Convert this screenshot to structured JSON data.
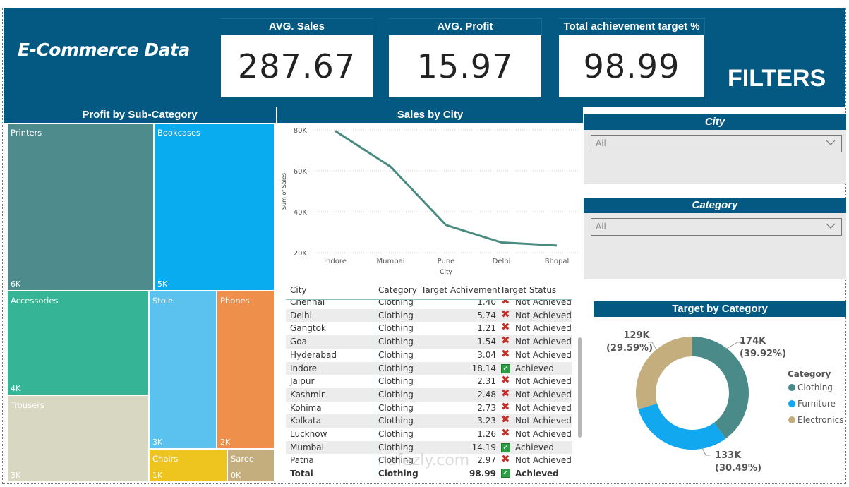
{
  "app": {
    "title": "E-Commerce Data"
  },
  "kpis": [
    {
      "label": "AVG. Sales",
      "value": "287.67"
    },
    {
      "label": "AVG. Profit",
      "value": "15.97"
    },
    {
      "label": "Total achievement target %",
      "value": "98.99"
    }
  ],
  "filters": {
    "title": "FILTERS",
    "city": {
      "title": "City",
      "selected": "All"
    },
    "category": {
      "title": "Category",
      "selected": "All"
    }
  },
  "colors": {
    "header": "#045983",
    "clothing": "#4a8b8a",
    "furniture": "#12a8ef",
    "electronics": "#c4ae7d",
    "line": "#4a8b80"
  },
  "treemap": {
    "title": "Profit by Sub-Category",
    "tiles": [
      {
        "name": "Printers",
        "value": "6K",
        "color": "#4e8b8d"
      },
      {
        "name": "Bookcases",
        "value": "5K",
        "color": "#0aacf0"
      },
      {
        "name": "Accessories",
        "value": "4K",
        "color": "#35b595"
      },
      {
        "name": "Trousers",
        "value": "3K",
        "color": "#d8d7c1"
      },
      {
        "name": "Stole",
        "value": "3K",
        "color": "#5bc1ef"
      },
      {
        "name": "Phones",
        "value": "2K",
        "color": "#ee8f4b"
      },
      {
        "name": "Chairs",
        "value": "1K",
        "color": "#eec41f"
      },
      {
        "name": "Saree",
        "value": "0K",
        "color": "#c5ae7e"
      }
    ]
  },
  "chart_data": [
    {
      "type": "line",
      "title": "Sales by City",
      "xlabel": "City",
      "ylabel": "Sum of Sales",
      "categories": [
        "Indore",
        "Mumbai",
        "Pune",
        "Delhi",
        "Bhopal"
      ],
      "series": [
        {
          "name": "Sum of Sales",
          "values": [
            79500,
            62000,
            33500,
            25000,
            23500
          ]
        }
      ],
      "ylim": [
        20000,
        80000
      ],
      "yticks": [
        {
          "value": 20000,
          "label": "20K"
        },
        {
          "value": 40000,
          "label": "40K"
        },
        {
          "value": 60000,
          "label": "60K"
        },
        {
          "value": 80000,
          "label": "80K"
        }
      ],
      "grid": true
    },
    {
      "type": "pie",
      "title": "Target by Category",
      "legend_title": "Category",
      "legend_position": "right",
      "categories": [
        "Clothing",
        "Furniture",
        "Electronics"
      ],
      "values": [
        174000,
        133000,
        129000
      ],
      "percent": [
        39.92,
        30.49,
        29.59
      ],
      "labels": [
        {
          "value": "174K",
          "pct": "(39.92%)"
        },
        {
          "value": "133K",
          "pct": "(30.49%)"
        },
        {
          "value": "129K",
          "pct": "(29.59%)"
        }
      ]
    }
  ],
  "table": {
    "columns": [
      "City",
      "Category",
      "Target Achivement",
      "Target Status"
    ],
    "rows": [
      {
        "city": "Chennai",
        "category": "Clothing",
        "value": "1.40",
        "status": "Not Achieved",
        "achieved": false
      },
      {
        "city": "Delhi",
        "category": "Clothing",
        "value": "5.74",
        "status": "Not Achieved",
        "achieved": false
      },
      {
        "city": "Gangtok",
        "category": "Clothing",
        "value": "1.21",
        "status": "Not Achieved",
        "achieved": false
      },
      {
        "city": "Goa",
        "category": "Clothing",
        "value": "1.54",
        "status": "Not Achieved",
        "achieved": false
      },
      {
        "city": "Hyderabad",
        "category": "Clothing",
        "value": "3.04",
        "status": "Not Achieved",
        "achieved": false
      },
      {
        "city": "Indore",
        "category": "Clothing",
        "value": "18.14",
        "status": "Achieved",
        "achieved": true
      },
      {
        "city": "Jaipur",
        "category": "Clothing",
        "value": "2.31",
        "status": "Not Achieved",
        "achieved": false
      },
      {
        "city": "Kashmir",
        "category": "Clothing",
        "value": "2.48",
        "status": "Not Achieved",
        "achieved": false
      },
      {
        "city": "Kohima",
        "category": "Clothing",
        "value": "2.73",
        "status": "Not Achieved",
        "achieved": false
      },
      {
        "city": "Kolkata",
        "category": "Clothing",
        "value": "3.23",
        "status": "Not Achieved",
        "achieved": false
      },
      {
        "city": "Lucknow",
        "category": "Clothing",
        "value": "1.26",
        "status": "Not Achieved",
        "achieved": false
      },
      {
        "city": "Mumbai",
        "category": "Clothing",
        "value": "14.19",
        "status": "Achieved",
        "achieved": true
      },
      {
        "city": "Patna",
        "category": "Clothing",
        "value": "2.97",
        "status": "Not Achieved",
        "achieved": false
      }
    ],
    "total": {
      "city": "Total",
      "category": "Clothing",
      "value": "98.99",
      "status": "Achieved",
      "achieved": true
    }
  },
  "watermark": "nafezly.com"
}
